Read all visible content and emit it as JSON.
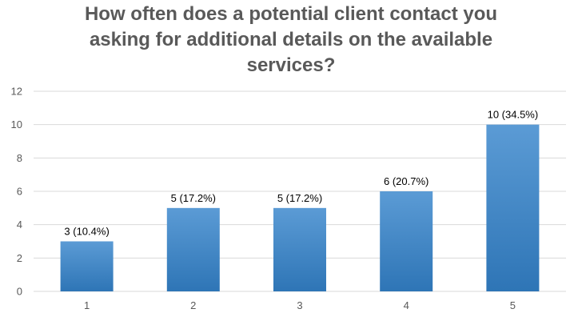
{
  "chart_data": {
    "type": "bar",
    "title_lines": [
      "How often does a potential client contact you",
      "asking for additional details on the available",
      "services?"
    ],
    "categories": [
      "1",
      "2",
      "3",
      "4",
      "5"
    ],
    "values": [
      3,
      5,
      5,
      6,
      10
    ],
    "data_labels": [
      "3 (10.4%)",
      "5 (17.2%)",
      "5 (17.2%)",
      "6 (20.7%)",
      "10 (34.5%)"
    ],
    "yticks": [
      "0",
      "2",
      "4",
      "6",
      "8",
      "10",
      "12"
    ],
    "ylim": [
      0,
      12
    ],
    "grid": true,
    "legend": "none",
    "colors": {
      "bar_top": "#5B9BD5",
      "bar_bottom": "#2E75B6",
      "grid": "#D9D9D9",
      "text": "#595959"
    }
  }
}
